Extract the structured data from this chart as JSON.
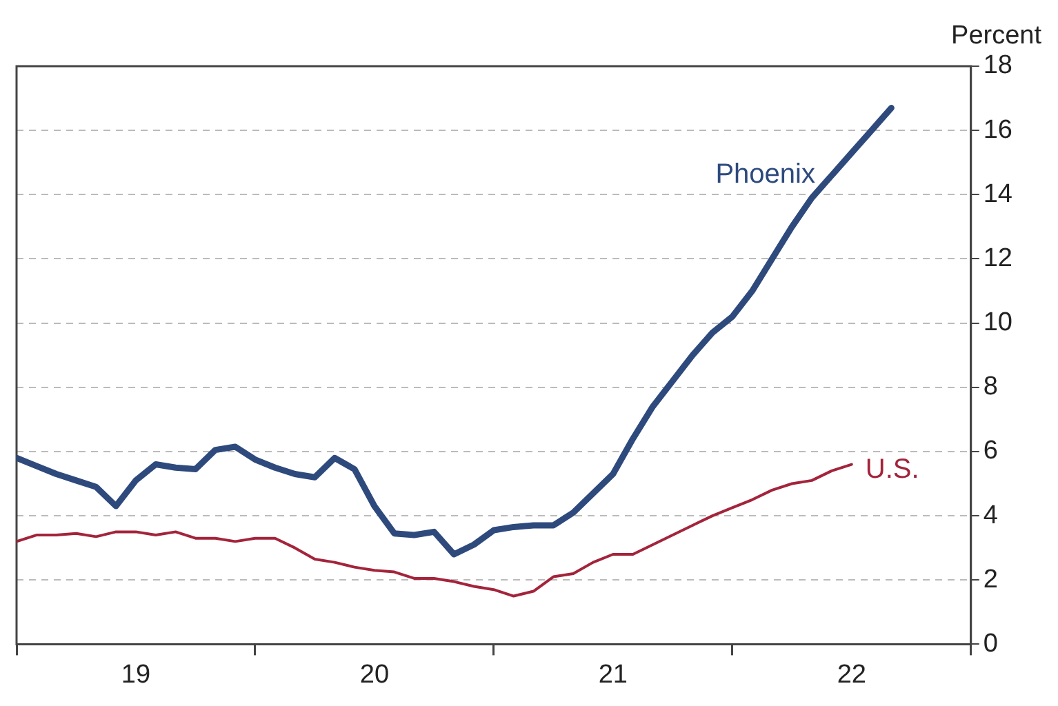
{
  "chart_data": {
    "type": "line",
    "ylabel": "Percent",
    "xlim": [
      "2019-01",
      "2023-01"
    ],
    "xticks": [
      {
        "value": "2019-01",
        "label": null
      },
      {
        "value": "2019-07",
        "label": "19"
      },
      {
        "value": "2020-01",
        "label": null
      },
      {
        "value": "2020-07",
        "label": "20"
      },
      {
        "value": "2021-01",
        "label": null
      },
      {
        "value": "2021-07",
        "label": "21"
      },
      {
        "value": "2022-01",
        "label": null
      },
      {
        "value": "2022-07",
        "label": "22"
      },
      {
        "value": "2023-01",
        "label": null
      }
    ],
    "ylim": [
      0,
      18
    ],
    "yticks": [
      0,
      2,
      4,
      6,
      8,
      10,
      12,
      14,
      16,
      18
    ],
    "grid": "y",
    "legend": false,
    "marker": "none",
    "line_style": "solid",
    "series": [
      {
        "name": "Phoenix",
        "color": "#2e4a7d",
        "x": [
          "2019-01",
          "2019-02",
          "2019-03",
          "2019-04",
          "2019-05",
          "2019-06",
          "2019-07",
          "2019-08",
          "2019-09",
          "2019-10",
          "2019-11",
          "2019-12",
          "2020-01",
          "2020-02",
          "2020-03",
          "2020-04",
          "2020-05",
          "2020-06",
          "2020-07",
          "2020-08",
          "2020-09",
          "2020-10",
          "2020-11",
          "2020-12",
          "2021-01",
          "2021-02",
          "2021-03",
          "2021-04",
          "2021-05",
          "2021-06",
          "2021-07",
          "2021-08",
          "2021-09",
          "2021-10",
          "2021-11",
          "2021-12",
          "2022-01",
          "2022-02",
          "2022-03",
          "2022-04",
          "2022-05",
          "2022-06",
          "2022-07",
          "2022-08",
          "2022-09"
        ],
        "values": [
          5.8,
          5.55,
          5.3,
          5.1,
          4.9,
          4.3,
          5.1,
          5.6,
          5.5,
          5.45,
          6.05,
          6.15,
          5.75,
          5.5,
          5.3,
          5.2,
          5.8,
          5.45,
          4.3,
          3.45,
          3.4,
          3.5,
          2.8,
          3.1,
          3.55,
          3.65,
          3.7,
          3.7,
          4.1,
          4.7,
          5.3,
          6.4,
          7.4,
          8.2,
          9.0,
          9.7,
          10.2,
          11.0,
          12.0,
          13.0,
          13.9,
          14.6,
          15.3,
          16.0,
          16.7
        ]
      },
      {
        "name": "U.S.",
        "color": "#a3243b",
        "x": [
          "2019-01",
          "2019-02",
          "2019-03",
          "2019-04",
          "2019-05",
          "2019-06",
          "2019-07",
          "2019-08",
          "2019-09",
          "2019-10",
          "2019-11",
          "2019-12",
          "2020-01",
          "2020-02",
          "2020-03",
          "2020-04",
          "2020-05",
          "2020-06",
          "2020-07",
          "2020-08",
          "2020-09",
          "2020-10",
          "2020-11",
          "2020-12",
          "2021-01",
          "2021-02",
          "2021-03",
          "2021-04",
          "2021-05",
          "2021-06",
          "2021-07",
          "2021-08",
          "2021-09",
          "2021-10",
          "2021-11",
          "2021-12",
          "2022-01",
          "2022-02",
          "2022-03",
          "2022-04",
          "2022-05",
          "2022-06",
          "2022-07"
        ],
        "values": [
          3.2,
          3.4,
          3.4,
          3.45,
          3.35,
          3.5,
          3.5,
          3.4,
          3.5,
          3.3,
          3.3,
          3.2,
          3.3,
          3.3,
          3.0,
          2.65,
          2.55,
          2.4,
          2.3,
          2.25,
          2.05,
          2.05,
          1.95,
          1.8,
          1.7,
          1.5,
          1.65,
          2.1,
          2.2,
          2.55,
          2.8,
          2.8,
          3.1,
          3.4,
          3.7,
          4.0,
          4.25,
          4.5,
          4.8,
          5.0,
          5.1,
          5.4,
          5.6
        ]
      }
    ]
  }
}
